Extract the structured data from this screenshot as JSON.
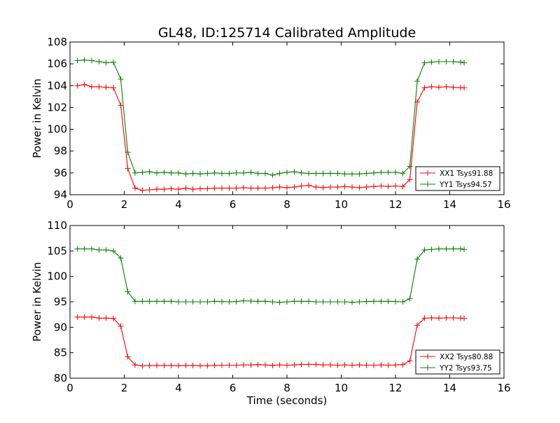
{
  "figure": {
    "title": "GL48, ID:125714 Calibrated Amplitude"
  },
  "chart_data": [
    {
      "type": "line",
      "title": "GL48, ID:125714 Calibrated Amplitude",
      "xlabel": "",
      "ylabel": "Power in Kelvin",
      "xlim": [
        0,
        16
      ],
      "ylim": [
        94,
        108
      ],
      "xticks": [
        0,
        2,
        4,
        6,
        8,
        10,
        12,
        14,
        16
      ],
      "yticks": [
        94,
        96,
        98,
        100,
        102,
        104,
        106,
        108
      ],
      "grid": false,
      "legend": "lower-right",
      "x": [
        0.27,
        0.53,
        0.8,
        1.07,
        1.33,
        1.6,
        1.87,
        2.13,
        2.4,
        2.67,
        2.93,
        3.2,
        3.47,
        3.73,
        4.0,
        4.27,
        4.53,
        4.8,
        5.07,
        5.33,
        5.6,
        5.87,
        6.13,
        6.4,
        6.67,
        6.93,
        7.2,
        7.47,
        7.73,
        8.0,
        8.27,
        8.53,
        8.8,
        9.07,
        9.33,
        9.6,
        9.87,
        10.13,
        10.4,
        10.67,
        10.93,
        11.2,
        11.47,
        11.73,
        12.0,
        12.27,
        12.53,
        12.8,
        13.07,
        13.33,
        13.6,
        13.87,
        14.13,
        14.4,
        14.53
      ],
      "series": [
        {
          "name": "XX1 Tsys91.88",
          "color": "#ff0000",
          "values": [
            104.0,
            104.1,
            103.9,
            103.9,
            103.85,
            103.8,
            102.2,
            96.4,
            94.6,
            94.4,
            94.45,
            94.5,
            94.5,
            94.55,
            94.5,
            94.6,
            94.5,
            94.55,
            94.55,
            94.6,
            94.6,
            94.6,
            94.6,
            94.65,
            94.6,
            94.6,
            94.6,
            94.65,
            94.7,
            94.65,
            94.7,
            94.8,
            94.85,
            94.7,
            94.65,
            94.7,
            94.7,
            94.75,
            94.7,
            94.65,
            94.7,
            94.75,
            94.8,
            94.75,
            94.8,
            94.75,
            95.4,
            102.5,
            103.8,
            103.9,
            103.85,
            103.9,
            103.85,
            103.8,
            103.8
          ]
        },
        {
          "name": "YY1 Tsys94.57",
          "color": "#008000",
          "values": [
            106.3,
            106.35,
            106.3,
            106.2,
            106.1,
            106.15,
            104.6,
            97.9,
            96.0,
            96.05,
            96.1,
            96.0,
            96.05,
            96.0,
            96.0,
            95.9,
            95.95,
            95.9,
            95.95,
            96.0,
            95.95,
            95.95,
            96.0,
            96.0,
            96.05,
            95.95,
            95.95,
            95.8,
            95.95,
            96.05,
            96.1,
            96.0,
            95.95,
            95.95,
            95.95,
            95.95,
            95.95,
            95.9,
            95.9,
            95.9,
            95.95,
            96.0,
            96.05,
            96.05,
            96.05,
            95.95,
            96.6,
            104.4,
            106.1,
            106.15,
            106.2,
            106.2,
            106.2,
            106.15,
            106.1
          ]
        }
      ]
    },
    {
      "type": "line",
      "title": "",
      "xlabel": "Time (seconds)",
      "ylabel": "Power in Kelvin",
      "xlim": [
        0,
        16
      ],
      "ylim": [
        80,
        110
      ],
      "xticks": [
        0,
        2,
        4,
        6,
        8,
        10,
        12,
        14,
        16
      ],
      "yticks": [
        80,
        85,
        90,
        95,
        100,
        105,
        110
      ],
      "grid": false,
      "legend": "lower-right",
      "x": [
        0.27,
        0.53,
        0.8,
        1.07,
        1.33,
        1.6,
        1.87,
        2.13,
        2.4,
        2.67,
        2.93,
        3.2,
        3.47,
        3.73,
        4.0,
        4.27,
        4.53,
        4.8,
        5.07,
        5.33,
        5.6,
        5.87,
        6.13,
        6.4,
        6.67,
        6.93,
        7.2,
        7.47,
        7.73,
        8.0,
        8.27,
        8.53,
        8.8,
        9.07,
        9.33,
        9.6,
        9.87,
        10.13,
        10.4,
        10.67,
        10.93,
        11.2,
        11.47,
        11.73,
        12.0,
        12.27,
        12.53,
        12.8,
        13.07,
        13.33,
        13.6,
        13.87,
        14.13,
        14.4,
        14.53
      ],
      "series": [
        {
          "name": "XX2 Tsys80.88",
          "color": "#ff0000",
          "values": [
            92.0,
            92.0,
            92.0,
            91.8,
            91.8,
            91.75,
            90.2,
            84.2,
            82.6,
            82.4,
            82.5,
            82.5,
            82.5,
            82.5,
            82.45,
            82.5,
            82.5,
            82.45,
            82.45,
            82.5,
            82.55,
            82.55,
            82.55,
            82.6,
            82.6,
            82.65,
            82.6,
            82.5,
            82.6,
            82.55,
            82.6,
            82.7,
            82.7,
            82.7,
            82.6,
            82.6,
            82.55,
            82.6,
            82.55,
            82.6,
            82.55,
            82.55,
            82.6,
            82.55,
            82.6,
            82.65,
            83.4,
            90.4,
            91.8,
            91.85,
            91.8,
            91.85,
            91.85,
            91.8,
            91.75
          ]
        },
        {
          "name": "YY2 Tsys93.75",
          "color": "#008000",
          "values": [
            105.4,
            105.4,
            105.4,
            105.2,
            105.2,
            105.0,
            103.6,
            97.0,
            95.1,
            95.1,
            95.1,
            95.1,
            95.1,
            95.1,
            95.0,
            95.0,
            95.0,
            95.0,
            95.0,
            95.1,
            95.05,
            95.0,
            95.05,
            95.2,
            95.15,
            95.1,
            95.1,
            95.0,
            94.9,
            95.0,
            95.1,
            95.1,
            95.1,
            95.0,
            95.0,
            95.0,
            95.0,
            95.0,
            94.9,
            95.0,
            95.05,
            95.1,
            95.1,
            95.1,
            95.05,
            95.0,
            95.6,
            103.4,
            105.2,
            105.3,
            105.4,
            105.4,
            105.4,
            105.4,
            105.3
          ]
        }
      ]
    }
  ]
}
